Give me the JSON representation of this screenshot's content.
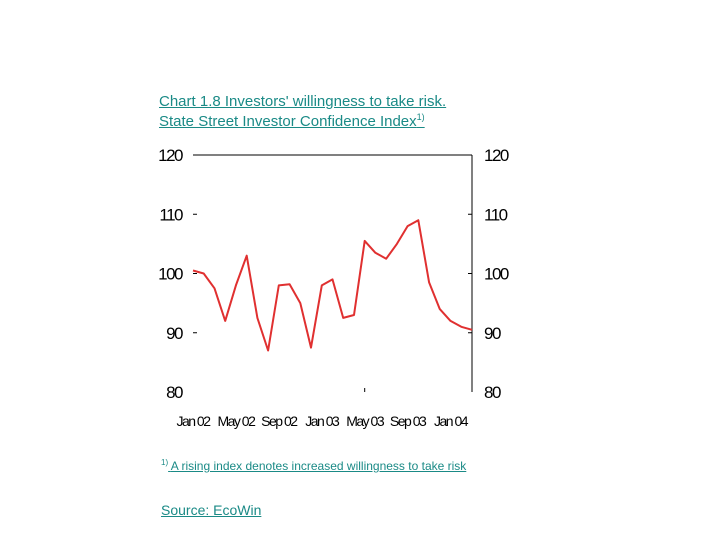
{
  "title_line1": "Chart 1.8 Investors' willingness to take risk.",
  "title_line2": "State Street Investor Confidence Index",
  "title_sup": "1)",
  "footnote_marker": "1)",
  "footnote_text": "A rising index denotes increased willingness to take risk",
  "source": "Source: EcoWin",
  "chart_data": {
    "type": "line",
    "title": "Chart 1.8 Investors' willingness to take risk. State Street Investor Confidence Index",
    "xlabel": "",
    "ylabel": "",
    "ylim": [
      80,
      120
    ],
    "yticks": [
      80,
      90,
      100,
      110,
      120
    ],
    "xtick_labels": [
      "Jan 02",
      "May 02",
      "Sep 02",
      "Jan 03",
      "May 03",
      "Sep 03",
      "Jan 04"
    ],
    "grid": false,
    "line_color": "#e03030",
    "series": [
      {
        "name": "",
        "x": [
          "Jan 02",
          "Feb 02",
          "Mar 02",
          "Apr 02",
          "May 02",
          "Jun 02",
          "Jul 02",
          "Aug 02",
          "Sep 02",
          "Oct 02",
          "Nov 02",
          "Dec 02",
          "Jan 03",
          "Feb 03",
          "Mar 03",
          "Apr 03",
          "May 03",
          "Jun 03",
          "Jul 03",
          "Aug 03",
          "Sep 03",
          "Oct 03",
          "Nov 03",
          "Dec 03",
          "Jan 04",
          "Feb 04",
          "Mar 04"
        ],
        "values": [
          100.5,
          100,
          97.5,
          92,
          98,
          103,
          92.5,
          87,
          98,
          98.2,
          95,
          87.5,
          98,
          99,
          92.5,
          93,
          105.5,
          103.5,
          102.5,
          105,
          108,
          109,
          98.5,
          94,
          92,
          91,
          90.5
        ]
      }
    ]
  }
}
